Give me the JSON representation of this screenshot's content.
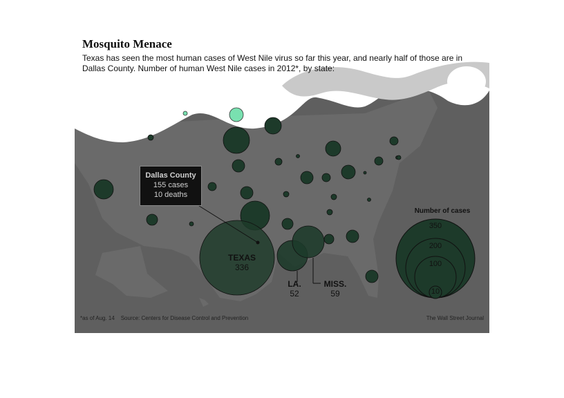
{
  "title": "Mosquito Menace",
  "subtitle": "Texas has seen the most human cases of West Nile virus so far this year, and nearly half of those are in Dallas County. Number of human West Nile cases in 2012*, by state:",
  "callout": {
    "name": "Dallas County",
    "cases": "155 cases",
    "deaths": "10 deaths"
  },
  "labels": {
    "texas": {
      "state": "TEXAS",
      "value": "336"
    },
    "louisiana": {
      "state": "LA.",
      "value": "52"
    },
    "mississippi": {
      "state": "MISS.",
      "value": "59"
    }
  },
  "legend": {
    "title": "Number of cases",
    "values": [
      "350",
      "200",
      "100",
      "10"
    ]
  },
  "footnote": "*as of Aug. 14    Source: Centers for Disease Control and Prevention",
  "credit": "The Wall Street Journal",
  "colors": {
    "background": "#5f5f5f",
    "land": "#6a6a6a",
    "bubble": "#1d3a2a",
    "highlight": "#79e0b0",
    "callout": "#111111"
  }
}
